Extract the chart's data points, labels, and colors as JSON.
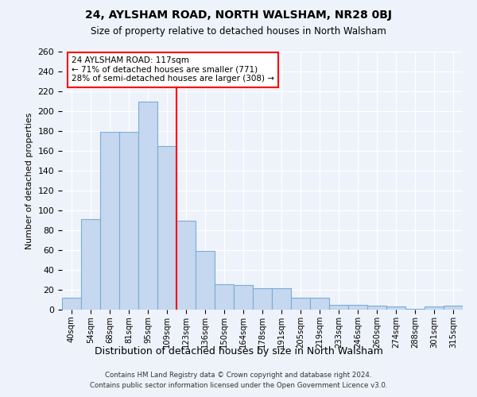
{
  "title1": "24, AYLSHAM ROAD, NORTH WALSHAM, NR28 0BJ",
  "title2": "Size of property relative to detached houses in North Walsham",
  "xlabel": "Distribution of detached houses by size in North Walsham",
  "ylabel": "Number of detached properties",
  "categories": [
    "40sqm",
    "54sqm",
    "68sqm",
    "81sqm",
    "95sqm",
    "109sqm",
    "123sqm",
    "136sqm",
    "150sqm",
    "164sqm",
    "178sqm",
    "191sqm",
    "205sqm",
    "219sqm",
    "233sqm",
    "246sqm",
    "260sqm",
    "274sqm",
    "288sqm",
    "301sqm",
    "315sqm"
  ],
  "values": [
    12,
    91,
    179,
    179,
    210,
    165,
    90,
    59,
    26,
    25,
    22,
    22,
    12,
    12,
    5,
    5,
    4,
    3,
    1,
    3,
    4
  ],
  "bar_color": "#c5d8f0",
  "bar_edge_color": "#7aadd4",
  "vline_color": "red",
  "annotation_line1": "24 AYLSHAM ROAD: 117sqm",
  "annotation_line2": "← 71% of detached houses are smaller (771)",
  "annotation_line3": "28% of semi-detached houses are larger (308) →",
  "annotation_box_color": "white",
  "annotation_box_edge": "red",
  "ylim": [
    0,
    260
  ],
  "yticks": [
    0,
    20,
    40,
    60,
    80,
    100,
    120,
    140,
    160,
    180,
    200,
    220,
    240,
    260
  ],
  "footer1": "Contains HM Land Registry data © Crown copyright and database right 2024.",
  "footer2": "Contains public sector information licensed under the Open Government Licence v3.0.",
  "bg_color": "#eef2fa",
  "plot_bg_color": "#eef2fa",
  "grid_color": "#ffffff"
}
